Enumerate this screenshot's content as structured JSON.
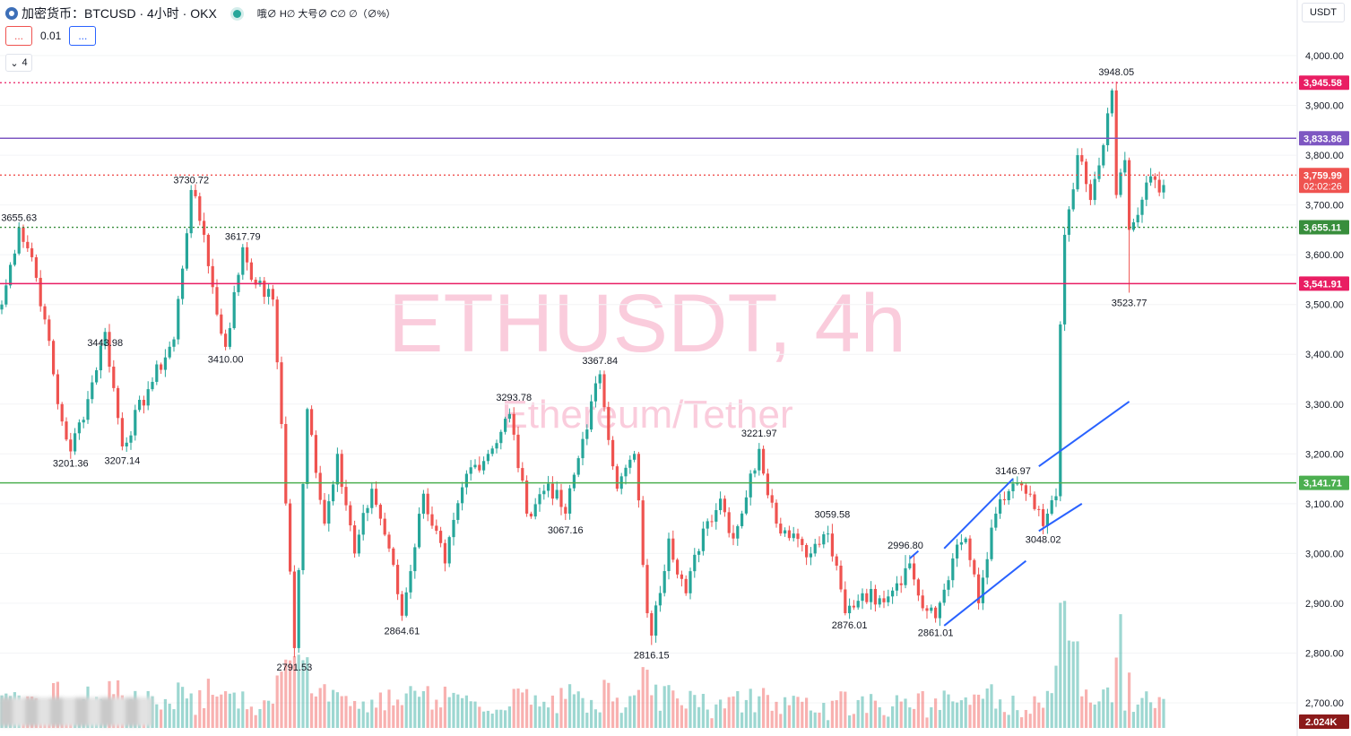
{
  "header": {
    "symbol_title": "加密货币：BTCUSD · 4小时 · OKX",
    "ohlc_text": "哦∅ H∅ 大号∅ C∅ ∅（∅%）",
    "sell_button": "...",
    "buy_button": "...",
    "spread": "0.01",
    "indicators_count": "4",
    "currency": "USDT"
  },
  "colors": {
    "up": "#26a69a",
    "down": "#ef5350",
    "purple": "#7e57c2",
    "pink": "#e91e63",
    "green": "#4caf50",
    "dark_green": "#388e3c",
    "blue_channel": "#2962ff",
    "watermark": "#f8bbd0"
  },
  "watermark": {
    "main": "ETHUSDT, 4h",
    "sub": "Ethereum/Tether"
  },
  "chart_data": {
    "type": "candlestick",
    "y_range": [
      2680,
      4080
    ],
    "y_ticks": [
      2700,
      2800,
      2900,
      3000,
      3100,
      3200,
      3300,
      3400,
      3500,
      3600,
      3700,
      3800,
      3900,
      4000
    ],
    "y_tick_labels": [
      "2,700.00",
      "2,800.00",
      "2,900.00",
      "3,000.00",
      "3,100.00",
      "3,200.00",
      "3,300.00",
      "3,400.00",
      "3,500.00",
      "3,600.00",
      "3,700.00",
      "3,800.00",
      "3,900.00",
      "4,000.00"
    ],
    "current_price": 3759.99,
    "current_price_label": "3,759.99",
    "countdown": "02:02:26",
    "volume_label": "2.024K",
    "horizontal_lines": [
      {
        "price": 3945.58,
        "label": "3,945.58",
        "color": "#e91e63",
        "style": "dotted"
      },
      {
        "price": 3833.86,
        "label": "3,833.86",
        "color": "#7e57c2",
        "style": "solid"
      },
      {
        "price": 3759.99,
        "label": "3,759.99",
        "color": "#ef5350",
        "style": "dotted"
      },
      {
        "price": 3655.11,
        "label": "3,655.11",
        "color": "#388e3c",
        "style": "dotted"
      },
      {
        "price": 3541.91,
        "label": "3,541.91",
        "color": "#e91e63",
        "style": "solid"
      },
      {
        "price": 3141.71,
        "label": "3,141.71",
        "color": "#4caf50",
        "style": "solid"
      }
    ],
    "annotations": [
      {
        "text": "3655.63",
        "price": 3655.63,
        "pos": "high",
        "idx": 4
      },
      {
        "text": "3201.36",
        "price": 3201.36,
        "pos": "low",
        "idx": 16
      },
      {
        "text": "3443.98",
        "price": 3443.98,
        "pos": "low",
        "idx": 24
      },
      {
        "text": "3207.14",
        "price": 3207.14,
        "pos": "low",
        "idx": 28
      },
      {
        "text": "3730.72",
        "price": 3730.72,
        "pos": "high",
        "idx": 44
      },
      {
        "text": "3410.00",
        "price": 3410.0,
        "pos": "low",
        "idx": 52
      },
      {
        "text": "3617.79",
        "price": 3617.79,
        "pos": "high",
        "idx": 56
      },
      {
        "text": "2791.53",
        "price": 2791.53,
        "pos": "low",
        "idx": 68
      },
      {
        "text": "2864.61",
        "price": 2864.61,
        "pos": "low",
        "idx": 93
      },
      {
        "text": "3293.78",
        "price": 3293.78,
        "pos": "high",
        "idx": 119
      },
      {
        "text": "3067.16",
        "price": 3067.16,
        "pos": "low",
        "idx": 131
      },
      {
        "text": "3367.84",
        "price": 3367.84,
        "pos": "high",
        "idx": 139
      },
      {
        "text": "2816.15",
        "price": 2816.15,
        "pos": "low",
        "idx": 151
      },
      {
        "text": "3221.97",
        "price": 3221.97,
        "pos": "high",
        "idx": 176
      },
      {
        "text": "3059.58",
        "price": 3059.58,
        "pos": "high",
        "idx": 193
      },
      {
        "text": "2876.01",
        "price": 2876.01,
        "pos": "low",
        "idx": 197
      },
      {
        "text": "2996.80",
        "price": 2996.8,
        "pos": "high",
        "idx": 210
      },
      {
        "text": "2861.01",
        "price": 2861.01,
        "pos": "low",
        "idx": 217
      },
      {
        "text": "3146.97",
        "price": 3146.97,
        "pos": "high",
        "idx": 235
      },
      {
        "text": "3048.02",
        "price": 3048.02,
        "pos": "low",
        "idx": 242
      },
      {
        "text": "3948.05",
        "price": 3948.05,
        "pos": "high",
        "idx": 259
      },
      {
        "text": "3523.77",
        "price": 3523.77,
        "pos": "low",
        "idx": 262
      }
    ],
    "channel_lines": [
      {
        "i1": 211,
        "p1": 2990,
        "i2": 213,
        "p2": 3005
      },
      {
        "i1": 219,
        "p1": 3010,
        "i2": 235,
        "p2": 3150
      },
      {
        "i1": 219,
        "p1": 2855,
        "i2": 238,
        "p2": 2985
      },
      {
        "i1": 241,
        "p1": 3045,
        "i2": 251,
        "p2": 3100
      },
      {
        "i1": 241,
        "p1": 3175,
        "i2": 262,
        "p2": 3305
      }
    ],
    "anchors": [
      [
        0,
        3500
      ],
      [
        4,
        3655
      ],
      [
        7,
        3595
      ],
      [
        10,
        3470
      ],
      [
        13,
        3300
      ],
      [
        16,
        3205
      ],
      [
        20,
        3310
      ],
      [
        24,
        3445
      ],
      [
        28,
        3215
      ],
      [
        34,
        3330
      ],
      [
        40,
        3430
      ],
      [
        44,
        3730
      ],
      [
        47,
        3640
      ],
      [
        50,
        3480
      ],
      [
        52,
        3415
      ],
      [
        56,
        3615
      ],
      [
        59,
        3540
      ],
      [
        63,
        3510
      ],
      [
        65,
        3260
      ],
      [
        68,
        2810
      ],
      [
        71,
        3290
      ],
      [
        75,
        3060
      ],
      [
        78,
        3200
      ],
      [
        82,
        3000
      ],
      [
        86,
        3130
      ],
      [
        90,
        3010
      ],
      [
        93,
        2875
      ],
      [
        98,
        3120
      ],
      [
        103,
        2980
      ],
      [
        108,
        3160
      ],
      [
        113,
        3200
      ],
      [
        118,
        3280
      ],
      [
        122,
        3080
      ],
      [
        127,
        3140
      ],
      [
        131,
        3080
      ],
      [
        135,
        3230
      ],
      [
        139,
        3360
      ],
      [
        143,
        3130
      ],
      [
        147,
        3200
      ],
      [
        150,
        2880
      ],
      [
        151,
        2835
      ],
      [
        155,
        3030
      ],
      [
        159,
        2920
      ],
      [
        163,
        3050
      ],
      [
        167,
        3110
      ],
      [
        170,
        3030
      ],
      [
        176,
        3210
      ],
      [
        180,
        3060
      ],
      [
        184,
        3040
      ],
      [
        188,
        3000
      ],
      [
        192,
        3040
      ],
      [
        196,
        2880
      ],
      [
        200,
        2920
      ],
      [
        204,
        2910
      ],
      [
        208,
        2940
      ],
      [
        211,
        2980
      ],
      [
        214,
        2890
      ],
      [
        217,
        2870
      ],
      [
        221,
        2990
      ],
      [
        224,
        3030
      ],
      [
        227,
        2900
      ],
      [
        231,
        3080
      ],
      [
        235,
        3140
      ],
      [
        238,
        3120
      ],
      [
        242,
        3055
      ],
      [
        245,
        3115
      ],
      [
        246,
        3460
      ],
      [
        247,
        3640
      ],
      [
        250,
        3800
      ],
      [
        253,
        3710
      ],
      [
        256,
        3820
      ],
      [
        258,
        3930
      ],
      [
        259,
        3720
      ],
      [
        261,
        3790
      ],
      [
        262,
        3650
      ],
      [
        264,
        3680
      ],
      [
        266,
        3745
      ],
      [
        270,
        3740
      ]
    ]
  }
}
